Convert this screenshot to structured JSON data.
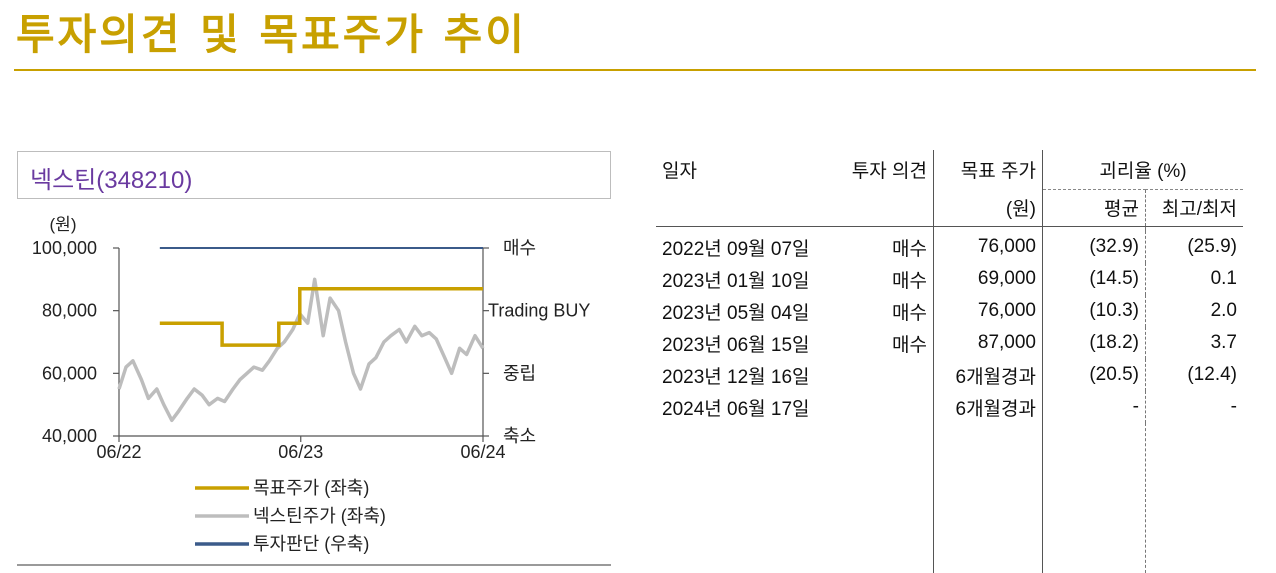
{
  "page": {
    "title": "투자의견 및 목표주가 추이"
  },
  "chart_title": "넥스틴(348210)",
  "chart_data": {
    "type": "line",
    "y_unit": "(원)",
    "ylim": [
      40000,
      100000
    ],
    "y_ticks": [
      "40,000",
      "60,000",
      "80,000",
      "100,000"
    ],
    "x_ticks": [
      "06/22",
      "06/23",
      "06/24"
    ],
    "xlim": [
      "2022-06-17",
      "2024-06-17"
    ],
    "right_axis_labels": [
      "매수",
      "Trading BUY",
      "중립",
      "축소"
    ],
    "legend": [
      "목표주가 (좌축)",
      "넥스틴주가 (좌축)",
      "투자판단 (우축)"
    ],
    "colors": {
      "target": "#c9a000",
      "price": "#bdbdbd",
      "opinion": "#3b5b8a",
      "axis": "#555555"
    },
    "target_price": [
      {
        "from": "2022-09-07",
        "to": "2023-01-10",
        "value": 76000
      },
      {
        "from": "2023-01-10",
        "to": "2023-05-04",
        "value": 69000
      },
      {
        "from": "2023-05-04",
        "to": "2023-06-15",
        "value": 76000
      },
      {
        "from": "2023-06-15",
        "to": "2024-06-17",
        "value": 87000
      }
    ],
    "opinion": {
      "from": "2022-09-07",
      "to": "2024-06-17",
      "level": "매수"
    },
    "stock_price": {
      "x": [
        "2022-06-17",
        "2022-07-01",
        "2022-07-15",
        "2022-08-01",
        "2022-08-15",
        "2022-09-01",
        "2022-09-15",
        "2022-10-01",
        "2022-10-15",
        "2022-11-01",
        "2022-11-15",
        "2022-12-01",
        "2022-12-15",
        "2023-01-01",
        "2023-01-15",
        "2023-02-01",
        "2023-02-15",
        "2023-03-01",
        "2023-03-15",
        "2023-04-01",
        "2023-04-15",
        "2023-05-01",
        "2023-05-15",
        "2023-06-01",
        "2023-06-15",
        "2023-07-01",
        "2023-07-15",
        "2023-08-01",
        "2023-08-15",
        "2023-09-01",
        "2023-09-15",
        "2023-10-01",
        "2023-10-15",
        "2023-11-01",
        "2023-11-15",
        "2023-12-01",
        "2023-12-15",
        "2024-01-01",
        "2024-01-15",
        "2024-02-01",
        "2024-02-15",
        "2024-03-01",
        "2024-03-15",
        "2024-04-01",
        "2024-04-15",
        "2024-05-01",
        "2024-05-15",
        "2024-06-01",
        "2024-06-17"
      ],
      "y": [
        55000,
        62000,
        64000,
        58000,
        52000,
        55000,
        50000,
        45000,
        48000,
        52000,
        55000,
        53000,
        50000,
        52000,
        51000,
        55000,
        58000,
        60000,
        62000,
        61000,
        64000,
        68000,
        70000,
        74000,
        79000,
        76000,
        90000,
        72000,
        84000,
        80000,
        70000,
        60000,
        55000,
        63000,
        65000,
        70000,
        72000,
        74000,
        70000,
        75000,
        72000,
        73000,
        71000,
        65000,
        60000,
        68000,
        66000,
        72000,
        68000
      ]
    }
  },
  "table": {
    "headers": {
      "date": "일자",
      "opinion": "투자 의견",
      "target": "목표 주가",
      "target_unit": "(원)",
      "gap": "괴리율 (%)",
      "avg": "평균",
      "maxmin": "최고/최저"
    },
    "rows": [
      {
        "date": "2022년 09월 07일",
        "opinion": "매수",
        "target": "76,000",
        "avg": "(32.9)",
        "maxmin": "(25.9)"
      },
      {
        "date": "2023년 01월 10일",
        "opinion": "매수",
        "target": "69,000",
        "avg": "(14.5)",
        "maxmin": "0.1"
      },
      {
        "date": "2023년 05월 04일",
        "opinion": "매수",
        "target": "76,000",
        "avg": "(10.3)",
        "maxmin": "2.0"
      },
      {
        "date": "2023년 06월 15일",
        "opinion": "매수",
        "target": "87,000",
        "avg": "(18.2)",
        "maxmin": "3.7"
      },
      {
        "date": "2023년 12월 16일",
        "opinion": "",
        "target": "6개월경과",
        "avg": "(20.5)",
        "maxmin": "(12.4)"
      },
      {
        "date": "2024년 06월 17일",
        "opinion": "",
        "target": "6개월경과",
        "avg": "-",
        "maxmin": "-"
      }
    ]
  }
}
